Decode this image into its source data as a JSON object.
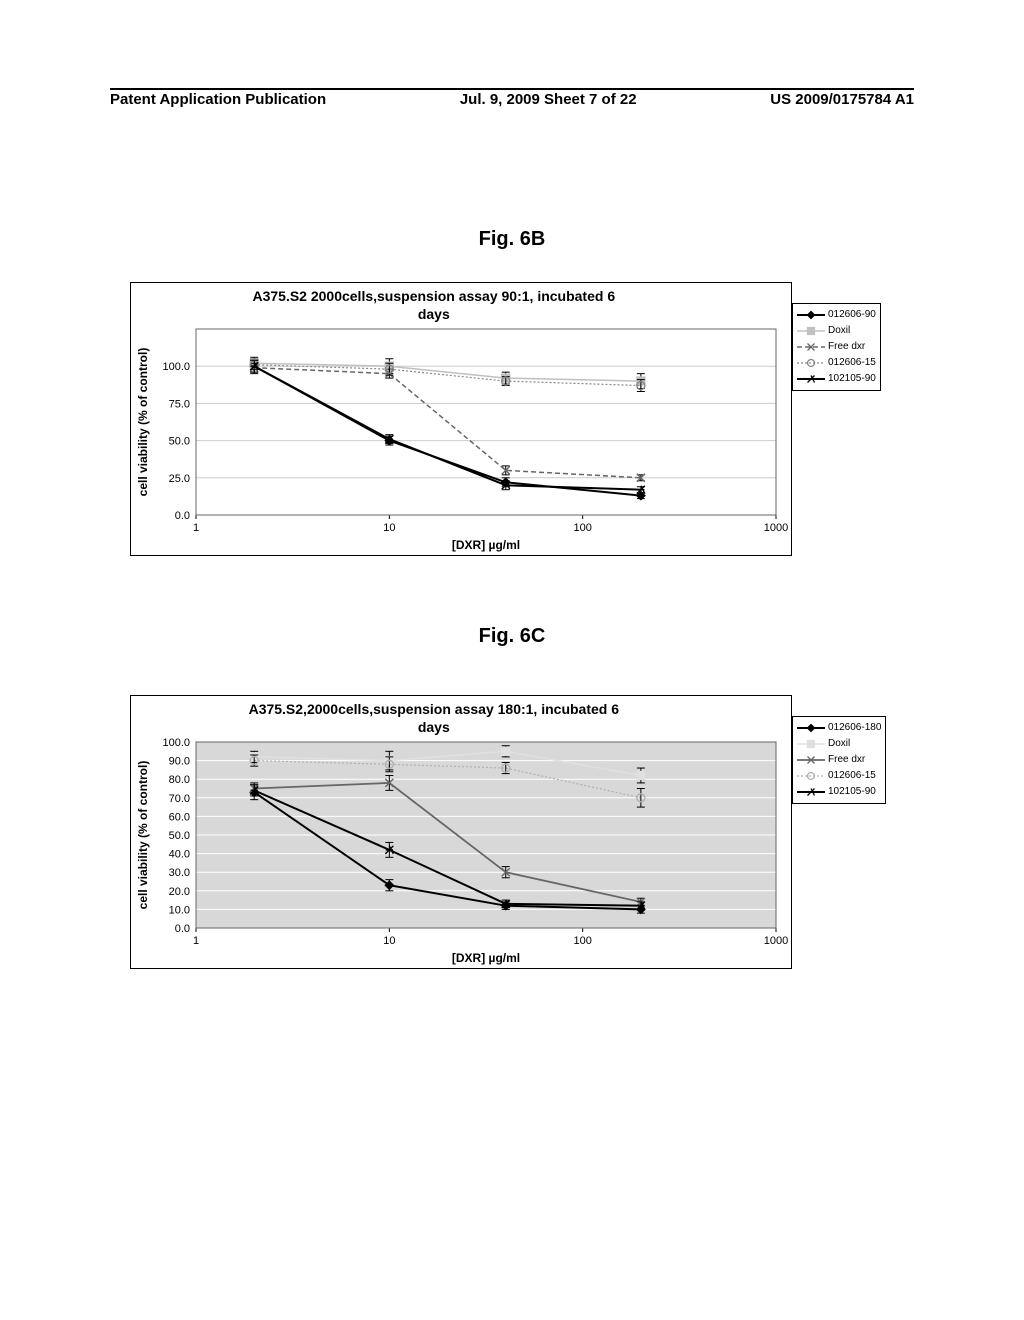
{
  "header": {
    "left": "Patent Application Publication",
    "center": "Jul. 9, 2009  Sheet 7 of 22",
    "right": "US 2009/0175784 A1"
  },
  "figB": {
    "label": "Fig. 6B",
    "title": "A375.S2 2000cells,suspension assay 90:1,  incubated 6 days",
    "ylabel": "cell viability (% of control)",
    "xlabel": "[DXR] µg/ml",
    "background": "#ffffff",
    "grid_color": "#cccccc",
    "title_fontsize": 14,
    "label_fontsize": 12,
    "xlog_min": 0,
    "xlog_max": 3,
    "ymin": 0,
    "ymax": 125,
    "ytick_step": 25,
    "yticks": [
      "0.0",
      "25.0",
      "50.0",
      "75.0",
      "100.0"
    ],
    "xticks": [
      "1",
      "10",
      "100",
      "1000"
    ],
    "series": [
      {
        "name": "012606-90",
        "color": "#000000",
        "marker": "diamond",
        "dash": "",
        "width": 2,
        "x": [
          2,
          10,
          40,
          200
        ],
        "y": [
          100,
          50,
          22,
          13
        ],
        "err": [
          5,
          3,
          3,
          2
        ]
      },
      {
        "name": "Doxil",
        "color": "#c0c0c0",
        "marker": "square",
        "dash": "",
        "width": 1.5,
        "x": [
          2,
          10,
          40,
          200
        ],
        "y": [
          102,
          100,
          92,
          90
        ],
        "err": [
          4,
          5,
          4,
          5
        ]
      },
      {
        "name": "Free dxr",
        "color": "#666666",
        "marker": "x",
        "dash": "5,3",
        "width": 1.5,
        "x": [
          2,
          10,
          40,
          200
        ],
        "y": [
          99,
          95,
          30,
          25
        ],
        "err": [
          3,
          3,
          3,
          2
        ]
      },
      {
        "name": "012606-15",
        "color": "#888888",
        "marker": "circle-open",
        "dash": "2,2",
        "width": 1.2,
        "x": [
          2,
          10,
          40,
          200
        ],
        "y": [
          101,
          98,
          90,
          87
        ],
        "err": [
          3,
          4,
          3,
          4
        ]
      },
      {
        "name": "102105-90",
        "color": "#000000",
        "marker": "star",
        "dash": "",
        "width": 2,
        "x": [
          2,
          10,
          40,
          200
        ],
        "y": [
          100,
          51,
          20,
          17
        ],
        "err": [
          4,
          3,
          3,
          2
        ]
      }
    ],
    "legend_items": [
      "012606-90",
      "Doxil",
      "Free dxr",
      "012606-15",
      "102105-90"
    ]
  },
  "figC": {
    "label": "Fig. 6C",
    "title": "A375.S2,2000cells,suspension assay 180:1,  incubated 6 days",
    "ylabel": "cell viability (% of control)",
    "xlabel": "[DXR] µg/ml",
    "background": "#d8d8d8",
    "grid_color": "#ffffff",
    "title_fontsize": 14,
    "label_fontsize": 12,
    "xlog_min": 0,
    "xlog_max": 3,
    "ymin": 0,
    "ymax": 100,
    "ytick_step": 10,
    "yticks": [
      "0.0",
      "10.0",
      "20.0",
      "30.0",
      "40.0",
      "50.0",
      "60.0",
      "70.0",
      "80.0",
      "90.0",
      "100.0"
    ],
    "xticks": [
      "1",
      "10",
      "100",
      "1000"
    ],
    "series": [
      {
        "name": "012606-180",
        "color": "#000000",
        "marker": "diamond",
        "dash": "",
        "width": 2,
        "x": [
          2,
          10,
          40,
          200
        ],
        "y": [
          73,
          23,
          12,
          10
        ],
        "err": [
          4,
          3,
          2,
          2
        ]
      },
      {
        "name": "Doxil",
        "color": "#e0e0e0",
        "marker": "square",
        "dash": "",
        "width": 1.5,
        "x": [
          2,
          10,
          40,
          200
        ],
        "y": [
          92,
          90,
          95,
          82
        ],
        "err": [
          3,
          5,
          3,
          4
        ]
      },
      {
        "name": "Free dxr",
        "color": "#666666",
        "marker": "x",
        "dash": "",
        "width": 1.8,
        "x": [
          2,
          10,
          40,
          200
        ],
        "y": [
          75,
          78,
          30,
          14
        ],
        "err": [
          3,
          4,
          3,
          2
        ]
      },
      {
        "name": "012606-15",
        "color": "#b0b0b0",
        "marker": "circle-open",
        "dash": "2,2",
        "width": 1.2,
        "x": [
          2,
          10,
          40,
          200
        ],
        "y": [
          90,
          88,
          86,
          70
        ],
        "err": [
          3,
          4,
          3,
          5
        ]
      },
      {
        "name": "102105-90",
        "color": "#000000",
        "marker": "star",
        "dash": "",
        "width": 2,
        "x": [
          2,
          10,
          40,
          200
        ],
        "y": [
          74,
          42,
          13,
          12
        ],
        "err": [
          3,
          4,
          2,
          2
        ]
      }
    ],
    "legend_items": [
      "012606-180",
      "Doxil",
      "Free dxr",
      "012606-15",
      "102105-90"
    ]
  }
}
